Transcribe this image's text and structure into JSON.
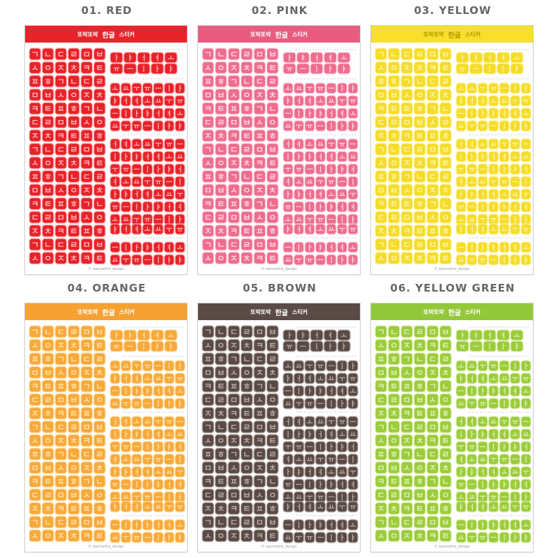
{
  "variants": [
    {
      "title": "01. RED",
      "color": "#e8222a",
      "light": "#ffb3b5",
      "bar": "#e8232b"
    },
    {
      "title": "02. PINK",
      "color": "#ee6d8f",
      "light": "#fcd6e0",
      "bar": "#e85c80"
    },
    {
      "title": "03. YELLOW",
      "color": "#f5dc2a",
      "light": "#fbf4a8",
      "bar": "#f7df2a"
    },
    {
      "title": "04. ORANGE",
      "color": "#f7a93a",
      "light": "#fde0a8",
      "bar": "#f5a233"
    },
    {
      "title": "05. BROWN",
      "color": "#5a4a46",
      "light": "#b7aca8",
      "bar": "#5b4b47"
    },
    {
      "title": "06. YELLOW GREEN",
      "color": "#9ccc3b",
      "light": "#dff0b6",
      "bar": "#93c83a"
    }
  ],
  "sheet": {
    "header_left": "또박또박",
    "header_big": "한글",
    "header_right": "스티커",
    "footer": "© wannathis_design"
  },
  "letters_left": [
    "ㄱ",
    "ㄴ",
    "ㄷ",
    "ㄹ",
    "ㅁ",
    "ㅂ",
    "ㅅ",
    "ㅇ",
    "ㅈ",
    "ㅊ",
    "ㅋ",
    "ㅌ",
    "ㅍ",
    "ㅎ"
  ],
  "letters_right": [
    "ㅏ",
    "ㅑ",
    "ㅓ",
    "ㅕ",
    "ㅗ",
    "ㅛ",
    "ㅜ",
    "ㅠ",
    "ㅡ",
    "ㅣ"
  ]
}
